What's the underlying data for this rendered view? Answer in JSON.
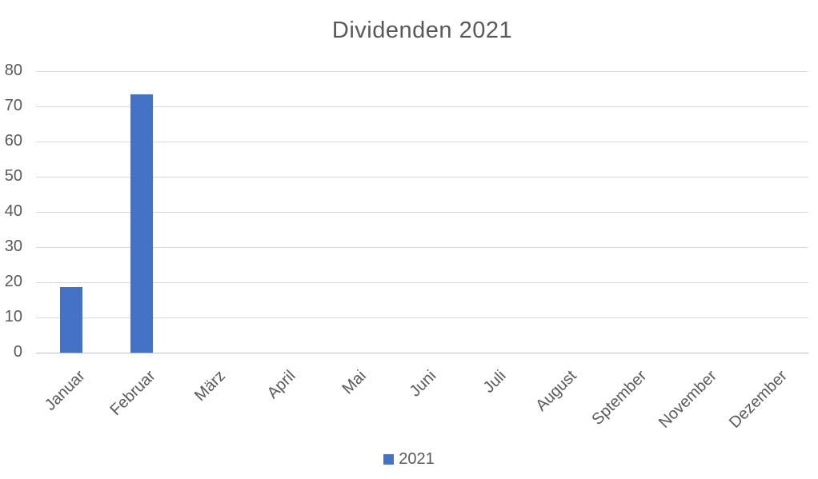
{
  "title": "Dividenden 2021",
  "legend": {
    "items": [
      {
        "label": "2021",
        "swatch_color": "#4472c4"
      }
    ]
  },
  "colors": {
    "bar": "#4472c4",
    "gridline": "#d9d9d9",
    "axis_line": "#bfbfbf",
    "text": "#595959",
    "background": "#ffffff"
  },
  "chart_data": {
    "type": "bar",
    "title": "Dividenden 2021",
    "categories": [
      "Januar",
      "Februar",
      "März",
      "April",
      "Mai",
      "Juni",
      "Juli",
      "August",
      "Sptember",
      "November",
      "Dezember"
    ],
    "series": [
      {
        "name": "2021",
        "color": "#4472c4",
        "values": [
          18.6,
          73.3,
          0,
          0,
          0,
          0,
          0,
          0,
          0,
          0,
          0
        ]
      }
    ],
    "xlabel": "",
    "ylabel": "",
    "ylim": [
      0,
      80
    ],
    "yticks": [
      0,
      10,
      20,
      30,
      40,
      50,
      60,
      70,
      80
    ],
    "grid": true,
    "legend_position": "bottom"
  }
}
